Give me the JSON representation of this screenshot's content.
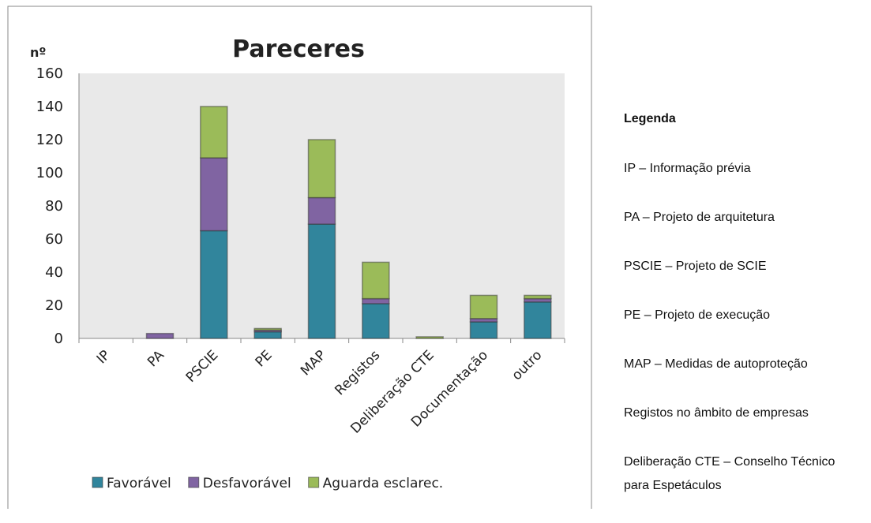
{
  "chart_data": {
    "type": "stacked_bar",
    "title": "Pareceres",
    "y_label": "nº",
    "categories": [
      "IP",
      "PA",
      "PSCIE",
      "PE",
      "MAP",
      "Registos",
      "Deliberação CTE",
      "Documentação",
      "outro"
    ],
    "series": [
      {
        "name": "Favorável",
        "color": "#31859c",
        "values": [
          0,
          0,
          65,
          4,
          69,
          21,
          0,
          10,
          22
        ]
      },
      {
        "name": "Desfavorável",
        "color": "#8064a2",
        "values": [
          0,
          3,
          44,
          1,
          16,
          3,
          0,
          2,
          2
        ]
      },
      {
        "name": "Aguarda esclarec.",
        "color": "#9bbb59",
        "values": [
          0,
          0,
          31,
          1,
          35,
          22,
          1,
          14,
          2
        ]
      }
    ],
    "ylim": [
      0,
      160
    ],
    "yticks": [
      0,
      20,
      40,
      60,
      80,
      100,
      120,
      140,
      160
    ],
    "grid": false,
    "legend": "bottom"
  },
  "notes": {
    "heading": "Legenda",
    "items": [
      "IP – Informação prévia",
      "PA – Projeto de arquitetura",
      "PSCIE – Projeto de SCIE",
      "PE – Projeto de execução",
      "MAP – Medidas de autoproteção",
      "Registos no âmbito de empresas",
      "Deliberação CTE – Conselho Técnico para Espetáculos"
    ]
  }
}
